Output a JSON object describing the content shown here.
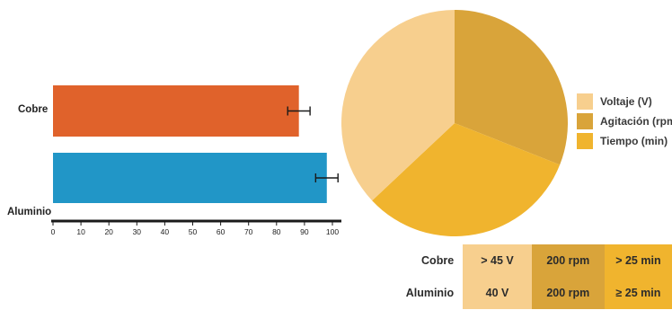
{
  "colors": {
    "cobre": "#e0622b",
    "aluminio": "#2196c7",
    "axis": "#1a1a1a",
    "voltaje": "#f7cf8e",
    "agitacion": "#d9a43a",
    "tiempo": "#f0b42e"
  },
  "chart_data": [
    {
      "type": "bar",
      "orientation": "horizontal",
      "categories": [
        "Cobre",
        "Aluminio"
      ],
      "values": [
        88,
        98
      ],
      "error": [
        4,
        4
      ],
      "xlim": [
        0,
        100
      ],
      "xticks": [
        "0",
        "10",
        "20",
        "30",
        "40",
        "50",
        "60",
        "70",
        "80",
        "90",
        "100"
      ],
      "title": "",
      "xlabel": "",
      "ylabel": ""
    },
    {
      "type": "pie",
      "labels": [
        "Voltaje (V)",
        "Agitación (rpm",
        "Tiempo (min)"
      ],
      "values": [
        37,
        31,
        32
      ],
      "legend": "right"
    }
  ],
  "table": {
    "rows": [
      {
        "label": "Cobre",
        "cells": [
          "> 45 V",
          "200 rpm",
          "> 25 min"
        ]
      },
      {
        "label": "Aluminio",
        "cells": [
          "40 V",
          "200 rpm",
          "≥ 25 min"
        ]
      }
    ],
    "cell_colors": [
      "#f7cf8e",
      "#d9a43a",
      "#f0b42e"
    ]
  }
}
